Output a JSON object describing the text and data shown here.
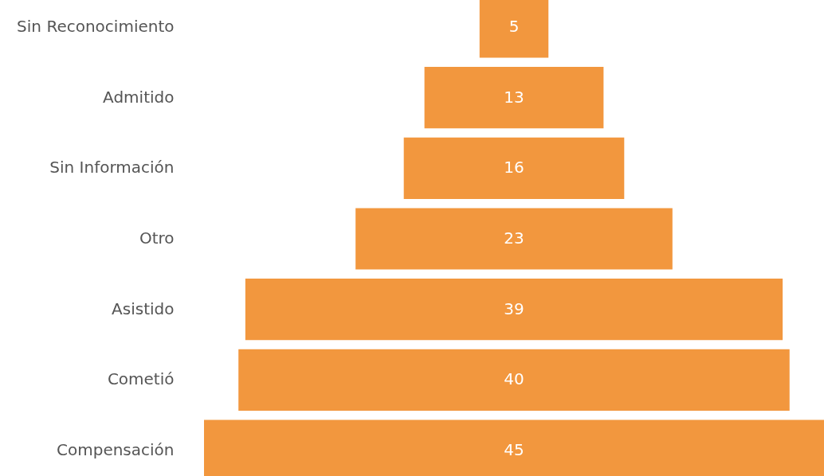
{
  "chart_data": {
    "type": "other",
    "categories": [
      "Sin Reconocimiento",
      "Admitido",
      "Sin Información",
      "Otro",
      "Asistido",
      "Cometió",
      "Compensación"
    ],
    "values": [
      5,
      13,
      16,
      23,
      39,
      40,
      45
    ],
    "color": "#f2973e",
    "data_labels": true
  }
}
